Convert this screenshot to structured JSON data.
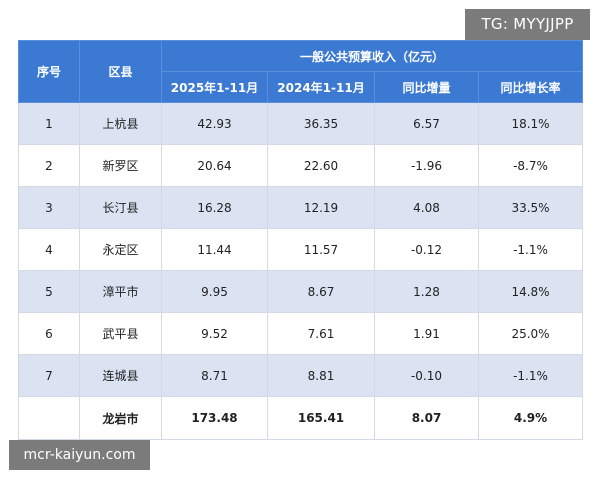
{
  "watermarks": {
    "top": "TG: MYYJJPP",
    "bottom": "mcr-kaiyun.com"
  },
  "table": {
    "headers": {
      "index": "序号",
      "district": "区县",
      "group": "一般公共预算收入（亿元）",
      "cur": "2025年1-11月",
      "prev": "2024年1-11月",
      "diff": "同比增量",
      "rate": "同比增长率"
    },
    "rows": [
      {
        "index": "1",
        "district": "上杭县",
        "cur": "42.93",
        "prev": "36.35",
        "diff": "6.57",
        "rate": "18.1%"
      },
      {
        "index": "2",
        "district": "新罗区",
        "cur": "20.64",
        "prev": "22.60",
        "diff": "-1.96",
        "rate": "-8.7%"
      },
      {
        "index": "3",
        "district": "长汀县",
        "cur": "16.28",
        "prev": "12.19",
        "diff": "4.08",
        "rate": "33.5%"
      },
      {
        "index": "4",
        "district": "永定区",
        "cur": "11.44",
        "prev": "11.57",
        "diff": "-0.12",
        "rate": "-1.1%"
      },
      {
        "index": "5",
        "district": "漳平市",
        "cur": "9.95",
        "prev": "8.67",
        "diff": "1.28",
        "rate": "14.8%"
      },
      {
        "index": "6",
        "district": "武平县",
        "cur": "9.52",
        "prev": "7.61",
        "diff": "1.91",
        "rate": "25.0%"
      },
      {
        "index": "7",
        "district": "连城县",
        "cur": "8.71",
        "prev": "8.81",
        "diff": "-0.10",
        "rate": "-1.1%"
      }
    ],
    "total": {
      "index": "",
      "district": "龙岩市",
      "cur": "173.48",
      "prev": "165.41",
      "diff": "8.07",
      "rate": "4.9%"
    }
  },
  "colors": {
    "header_bg": "#3c79d2",
    "stripe_bg": "#dbe3f3",
    "watermark_bg": "#7b7b7b"
  }
}
